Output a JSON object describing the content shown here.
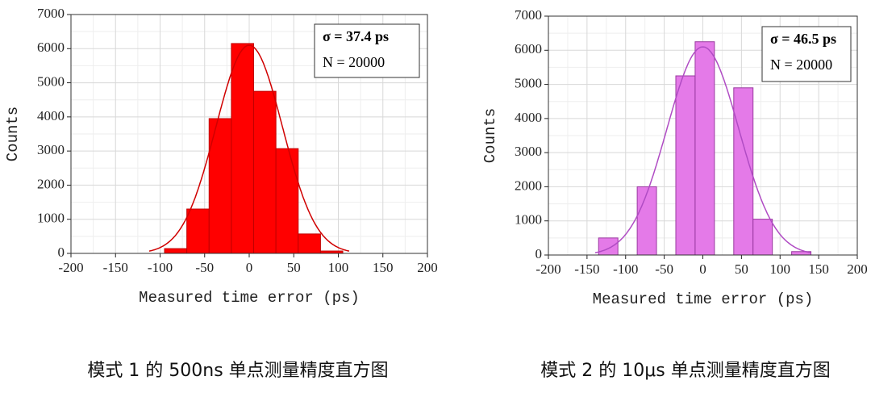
{
  "chart_data": [
    {
      "type": "histogram",
      "bins": [
        -95,
        -70,
        -45,
        -20,
        5,
        30,
        55,
        80,
        105
      ],
      "counts": [
        140,
        1300,
        3950,
        6150,
        4750,
        3070,
        570,
        70
      ],
      "color": "#ff0000",
      "edge_color": "#c00000",
      "fit": {
        "mean": 0,
        "sigma": 37.4,
        "peak": 6100,
        "color": "#d00000"
      },
      "xlim": [
        -200,
        200
      ],
      "xticks": [
        -200,
        -150,
        -100,
        -50,
        0,
        50,
        100,
        150,
        200
      ],
      "ylim": [
        0,
        7000
      ],
      "yticks": [
        0,
        1000,
        2000,
        3000,
        4000,
        5000,
        6000,
        7000
      ],
      "grid": true,
      "xlabel": "Measured time error (ps)",
      "ylabel": "Counts",
      "annotations": [
        "σ = 37.4 ps",
        "N = 20000"
      ],
      "caption": "模式 1 的 500ns 单点测量精度直方图"
    },
    {
      "type": "histogram",
      "bins": [
        -135,
        -110,
        -85,
        -60,
        -35,
        -10,
        15,
        40,
        65,
        90,
        115,
        140
      ],
      "counts": [
        500,
        0,
        2000,
        0,
        5250,
        6250,
        0,
        4900,
        1050,
        0,
        100
      ],
      "color": "#e47ae8",
      "edge_color": "#9a3aa0",
      "fit": {
        "mean": 0,
        "sigma": 46.5,
        "peak": 6100,
        "color": "#b04cc4"
      },
      "xlim": [
        -200,
        200
      ],
      "xticks": [
        -200,
        -150,
        -100,
        -50,
        0,
        50,
        100,
        150,
        200
      ],
      "ylim": [
        0,
        7000
      ],
      "yticks": [
        0,
        1000,
        2000,
        3000,
        4000,
        5000,
        6000,
        7000
      ],
      "grid": true,
      "xlabel": "Measured time error (ps)",
      "ylabel": "Counts",
      "annotations": [
        "σ = 46.5 ps",
        "N = 20000"
      ],
      "caption": "模式 2 的 10μs 单点测量精度直方图"
    }
  ]
}
